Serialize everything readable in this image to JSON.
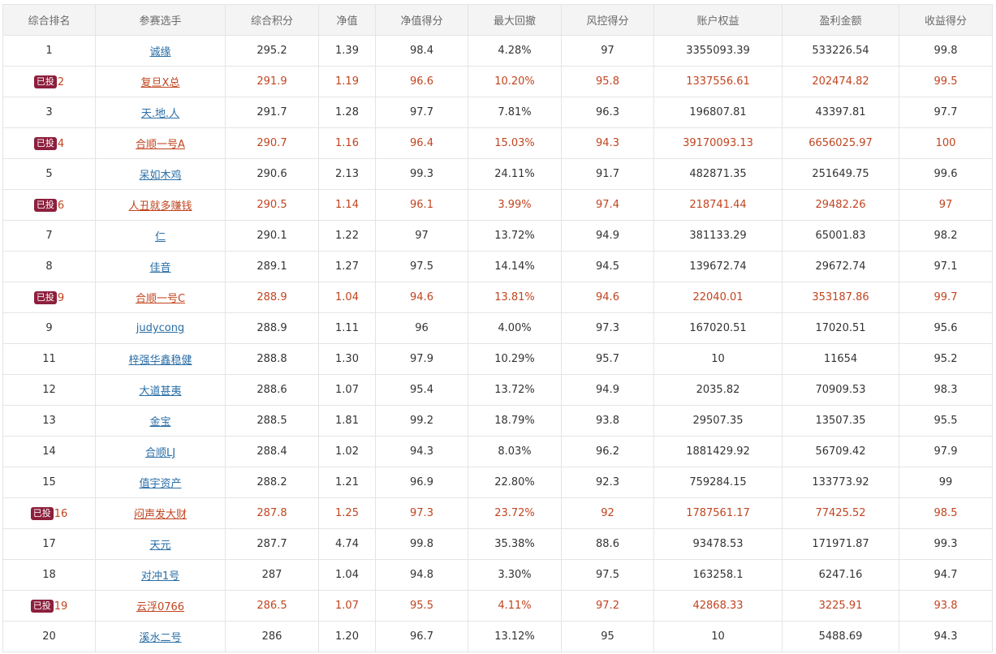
{
  "columns": [
    "综合排名",
    "参赛选手",
    "综合积分",
    "净值",
    "净值得分",
    "最大回撤",
    "风控得分",
    "账户权益",
    "盈利金额",
    "收益得分"
  ],
  "badge_label": "已投",
  "colors": {
    "invested_text": "#c1441f",
    "badge_bg": "#8c1f3c",
    "link": "#2a6ea6"
  },
  "rows": [
    {
      "rank": "1",
      "invested": false,
      "player": "诚缘",
      "score": "295.2",
      "nav": "1.39",
      "nav_score": "98.4",
      "max_drawdown": "4.28%",
      "risk_score": "97",
      "equity": "3355093.39",
      "profit": "533226.54",
      "return_score": "99.8"
    },
    {
      "rank": "2",
      "invested": true,
      "player": "复旦X总",
      "score": "291.9",
      "nav": "1.19",
      "nav_score": "96.6",
      "max_drawdown": "10.20%",
      "risk_score": "95.8",
      "equity": "1337556.61",
      "profit": "202474.82",
      "return_score": "99.5"
    },
    {
      "rank": "3",
      "invested": false,
      "player": "天.地.人",
      "score": "291.7",
      "nav": "1.28",
      "nav_score": "97.7",
      "max_drawdown": "7.81%",
      "risk_score": "96.3",
      "equity": "196807.81",
      "profit": "43397.81",
      "return_score": "97.7"
    },
    {
      "rank": "4",
      "invested": true,
      "player": "合顺一号A",
      "score": "290.7",
      "nav": "1.16",
      "nav_score": "96.4",
      "max_drawdown": "15.03%",
      "risk_score": "94.3",
      "equity": "39170093.13",
      "profit": "6656025.97",
      "return_score": "100"
    },
    {
      "rank": "5",
      "invested": false,
      "player": "呆如木鸡",
      "score": "290.6",
      "nav": "2.13",
      "nav_score": "99.3",
      "max_drawdown": "24.11%",
      "risk_score": "91.7",
      "equity": "482871.35",
      "profit": "251649.75",
      "return_score": "99.6"
    },
    {
      "rank": "6",
      "invested": true,
      "player": "人丑就多赚钱",
      "score": "290.5",
      "nav": "1.14",
      "nav_score": "96.1",
      "max_drawdown": "3.99%",
      "risk_score": "97.4",
      "equity": "218741.44",
      "profit": "29482.26",
      "return_score": "97"
    },
    {
      "rank": "7",
      "invested": false,
      "player": "仁",
      "score": "290.1",
      "nav": "1.22",
      "nav_score": "97",
      "max_drawdown": "13.72%",
      "risk_score": "94.9",
      "equity": "381133.29",
      "profit": "65001.83",
      "return_score": "98.2"
    },
    {
      "rank": "8",
      "invested": false,
      "player": "佳音",
      "score": "289.1",
      "nav": "1.27",
      "nav_score": "97.5",
      "max_drawdown": "14.14%",
      "risk_score": "94.5",
      "equity": "139672.74",
      "profit": "29672.74",
      "return_score": "97.1"
    },
    {
      "rank": "9",
      "invested": true,
      "player": "合顺一号C",
      "score": "288.9",
      "nav": "1.04",
      "nav_score": "94.6",
      "max_drawdown": "13.81%",
      "risk_score": "94.6",
      "equity": "22040.01",
      "profit": "353187.86",
      "return_score": "99.7"
    },
    {
      "rank": "9",
      "invested": false,
      "player": "judycong",
      "score": "288.9",
      "nav": "1.11",
      "nav_score": "96",
      "max_drawdown": "4.00%",
      "risk_score": "97.3",
      "equity": "167020.51",
      "profit": "17020.51",
      "return_score": "95.6"
    },
    {
      "rank": "11",
      "invested": false,
      "player": "梓强华鑫稳健",
      "score": "288.8",
      "nav": "1.30",
      "nav_score": "97.9",
      "max_drawdown": "10.29%",
      "risk_score": "95.7",
      "equity": "10",
      "profit": "11654",
      "return_score": "95.2"
    },
    {
      "rank": "12",
      "invested": false,
      "player": "大道甚夷",
      "score": "288.6",
      "nav": "1.07",
      "nav_score": "95.4",
      "max_drawdown": "13.72%",
      "risk_score": "94.9",
      "equity": "2035.82",
      "profit": "70909.53",
      "return_score": "98.3"
    },
    {
      "rank": "13",
      "invested": false,
      "player": "金宝",
      "score": "288.5",
      "nav": "1.81",
      "nav_score": "99.2",
      "max_drawdown": "18.79%",
      "risk_score": "93.8",
      "equity": "29507.35",
      "profit": "13507.35",
      "return_score": "95.5"
    },
    {
      "rank": "14",
      "invested": false,
      "player": "合顺LJ",
      "score": "288.4",
      "nav": "1.02",
      "nav_score": "94.3",
      "max_drawdown": "8.03%",
      "risk_score": "96.2",
      "equity": "1881429.92",
      "profit": "56709.42",
      "return_score": "97.9"
    },
    {
      "rank": "15",
      "invested": false,
      "player": "值宇资产",
      "score": "288.2",
      "nav": "1.21",
      "nav_score": "96.9",
      "max_drawdown": "22.80%",
      "risk_score": "92.3",
      "equity": "759284.15",
      "profit": "133773.92",
      "return_score": "99"
    },
    {
      "rank": "16",
      "invested": true,
      "player": "闷声发大财",
      "score": "287.8",
      "nav": "1.25",
      "nav_score": "97.3",
      "max_drawdown": "23.72%",
      "risk_score": "92",
      "equity": "1787561.17",
      "profit": "77425.52",
      "return_score": "98.5"
    },
    {
      "rank": "17",
      "invested": false,
      "player": "天元",
      "score": "287.7",
      "nav": "4.74",
      "nav_score": "99.8",
      "max_drawdown": "35.38%",
      "risk_score": "88.6",
      "equity": "93478.53",
      "profit": "171971.87",
      "return_score": "99.3"
    },
    {
      "rank": "18",
      "invested": false,
      "player": "对冲1号",
      "score": "287",
      "nav": "1.04",
      "nav_score": "94.8",
      "max_drawdown": "3.30%",
      "risk_score": "97.5",
      "equity": "163258.1",
      "profit": "6247.16",
      "return_score": "94.7"
    },
    {
      "rank": "19",
      "invested": true,
      "player": "云浮0766",
      "score": "286.5",
      "nav": "1.07",
      "nav_score": "95.5",
      "max_drawdown": "4.11%",
      "risk_score": "97.2",
      "equity": "42868.33",
      "profit": "3225.91",
      "return_score": "93.8"
    },
    {
      "rank": "20",
      "invested": false,
      "player": "溪水二号",
      "score": "286",
      "nav": "1.20",
      "nav_score": "96.7",
      "max_drawdown": "13.12%",
      "risk_score": "95",
      "equity": "10",
      "profit": "5488.69",
      "return_score": "94.3"
    }
  ]
}
